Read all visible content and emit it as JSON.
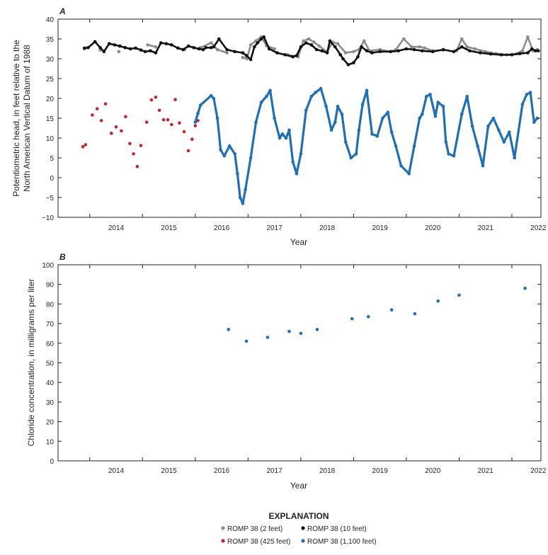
{
  "panel_a": {
    "label": "A",
    "ylabel_line1": "Potentiometric head, in feet relative to the",
    "ylabel_line2": "North American Vertical Datum of 1988",
    "xlabel": "Year"
  },
  "panel_b": {
    "label": "B",
    "ylabel": "Chloride concentration, in milligrams per liter",
    "xlabel": "Year"
  },
  "legend": {
    "title": "EXPLANATION",
    "items": [
      {
        "label": "ROMP 38 (2 feet)",
        "color": "#8c8c8c"
      },
      {
        "label": "ROMP 38 (10 feet)",
        "color": "#111111"
      },
      {
        "label": "ROMP 38 (425 feet)",
        "color": "#c1272d"
      },
      {
        "label": "ROMP 38 (1,100 feet)",
        "color": "#1f6fb5"
      }
    ]
  },
  "chart_data": [
    {
      "type": "scatter",
      "title": "A",
      "xlabel": "Year",
      "ylabel": "Potentiometric head, in feet relative to the North American Vertical Datum of 1988",
      "xlim": [
        2013.4,
        2022.55
      ],
      "ylim": [
        -10,
        40
      ],
      "xticks": [
        2014,
        2015,
        2016,
        2017,
        2018,
        2019,
        2020,
        2021,
        2022
      ],
      "yticks": [
        -10,
        -5,
        0,
        5,
        10,
        15,
        20,
        25,
        30,
        35,
        40
      ],
      "series": [
        {
          "name": "ROMP 38 (2 feet)",
          "color": "#8c8c8c",
          "x": [
            2013.9,
            2014.2,
            2014.55,
            2015.1,
            2015.25,
            2015.8,
            2016.1,
            2016.3,
            2016.42,
            2016.6,
            2016.9,
            2016.98,
            2017.05,
            2017.15,
            2017.25,
            2017.35,
            2017.5,
            2017.75,
            2017.95,
            2018.05,
            2018.15,
            2018.25,
            2018.35,
            2018.5,
            2018.6,
            2018.7,
            2018.85,
            2019.0,
            2019.1,
            2019.2,
            2019.3,
            2019.5,
            2019.7,
            2019.8,
            2019.95,
            2020.1,
            2020.25,
            2020.35,
            2020.5,
            2020.7,
            2020.95,
            2021.05,
            2021.15,
            2021.3,
            2021.5,
            2021.7,
            2021.9,
            2022.1,
            2022.2,
            2022.3,
            2022.4,
            2022.48
          ],
          "y": [
            32.5,
            32.2,
            31.8,
            33.5,
            33.0,
            32.3,
            32.8,
            34.0,
            32.3,
            31.5,
            30.3,
            30.0,
            33.5,
            34.5,
            35.5,
            33.3,
            32.5,
            31.0,
            30.5,
            34.5,
            35.0,
            34.2,
            33.2,
            31.7,
            34.2,
            33.8,
            31.5,
            31.8,
            32.3,
            34.5,
            32.0,
            32.3,
            31.8,
            32.3,
            35.0,
            33.0,
            33.0,
            32.7,
            32.0,
            32.2,
            32.0,
            35.0,
            33.0,
            32.5,
            31.8,
            31.3,
            31.0,
            31.3,
            32.0,
            35.5,
            32.0,
            32.3
          ]
        },
        {
          "name": "ROMP 38 (10 feet)",
          "color": "#111111",
          "x": [
            2013.9,
            2013.97,
            2014.1,
            2014.2,
            2014.27,
            2014.37,
            2014.47,
            2014.57,
            2014.67,
            2014.77,
            2014.87,
            2014.97,
            2015.05,
            2015.15,
            2015.25,
            2015.35,
            2015.45,
            2015.55,
            2015.67,
            2015.77,
            2015.87,
            2015.97,
            2016.07,
            2016.15,
            2016.2,
            2016.3,
            2016.35,
            2016.45,
            2016.6,
            2016.75,
            2016.9,
            2016.97,
            2017.05,
            2017.12,
            2017.18,
            2017.25,
            2017.3,
            2017.4,
            2017.55,
            2017.7,
            2017.85,
            2017.92,
            2018.0,
            2018.1,
            2018.2,
            2018.3,
            2018.4,
            2018.5,
            2018.55,
            2018.65,
            2018.75,
            2018.8,
            2018.9,
            2019.0,
            2019.08,
            2019.15,
            2019.25,
            2019.35,
            2019.5,
            2019.7,
            2019.85,
            2020.0,
            2020.15,
            2020.3,
            2020.5,
            2020.7,
            2020.9,
            2021.05,
            2021.2,
            2021.4,
            2021.6,
            2021.8,
            2022.0,
            2022.15,
            2022.3,
            2022.38,
            2022.45,
            2022.5
          ],
          "y": [
            32.7,
            32.8,
            34.3,
            32.8,
            31.8,
            33.8,
            33.5,
            33.2,
            32.8,
            32.5,
            32.7,
            32.2,
            31.8,
            32.0,
            31.5,
            34.0,
            33.8,
            33.5,
            32.7,
            32.3,
            33.2,
            32.8,
            32.5,
            32.3,
            32.8,
            32.8,
            33.0,
            35.0,
            32.3,
            31.8,
            31.5,
            30.8,
            29.8,
            33.0,
            34.0,
            35.0,
            35.5,
            32.5,
            31.5,
            31.0,
            30.5,
            30.8,
            33.0,
            34.0,
            33.5,
            32.3,
            32.0,
            31.5,
            34.5,
            33.0,
            31.0,
            30.0,
            28.5,
            29.0,
            30.5,
            33.0,
            32.0,
            31.5,
            31.8,
            31.8,
            32.0,
            32.5,
            32.3,
            32.0,
            31.8,
            32.3,
            31.8,
            33.0,
            32.0,
            31.5,
            31.2,
            31.0,
            31.0,
            31.3,
            31.5,
            32.5,
            32.0,
            32.0
          ]
        },
        {
          "name": "ROMP 38 (425 feet)",
          "color": "#c1272d",
          "x": [
            2013.87,
            2013.92,
            2014.05,
            2014.14,
            2014.22,
            2014.3,
            2014.41,
            2014.5,
            2014.6,
            2014.68,
            2014.76,
            2014.83,
            2014.9,
            2014.97,
            2015.08,
            2015.17,
            2015.25,
            2015.32,
            2015.4,
            2015.48,
            2015.55,
            2015.62,
            2015.7,
            2015.79,
            2015.87,
            2015.94,
            2016.0,
            2016.05
          ],
          "y": [
            7.8,
            8.3,
            15.8,
            17.4,
            14.4,
            18.6,
            11.2,
            12.8,
            11.8,
            15.4,
            8.6,
            6.0,
            2.8,
            8.1,
            14.0,
            19.6,
            20.3,
            17.0,
            14.6,
            14.6,
            13.4,
            19.7,
            13.8,
            11.6,
            6.8,
            9.7,
            13.1,
            14.4
          ]
        },
        {
          "name": "ROMP 38 (1,100 feet)",
          "color": "#1f6fb5",
          "x": [
            2016.0,
            2016.05,
            2016.1,
            2016.3,
            2016.35,
            2016.42,
            2016.48,
            2016.55,
            2016.65,
            2016.75,
            2016.8,
            2016.85,
            2016.9,
            2016.95,
            2017.05,
            2017.15,
            2017.25,
            2017.35,
            2017.42,
            2017.5,
            2017.6,
            2017.65,
            2017.72,
            2017.78,
            2017.85,
            2017.92,
            2018.0,
            2018.1,
            2018.2,
            2018.28,
            2018.38,
            2018.48,
            2018.58,
            2018.65,
            2018.7,
            2018.78,
            2018.85,
            2018.95,
            2019.05,
            2019.1,
            2019.17,
            2019.25,
            2019.35,
            2019.45,
            2019.55,
            2019.65,
            2019.72,
            2019.8,
            2019.9,
            2020.05,
            2020.15,
            2020.25,
            2020.3,
            2020.38,
            2020.45,
            2020.55,
            2020.6,
            2020.7,
            2020.75,
            2020.8,
            2020.9,
            2021.05,
            2021.15,
            2021.25,
            2021.35,
            2021.45,
            2021.55,
            2021.65,
            2021.75,
            2021.85,
            2021.95,
            2022.05,
            2022.2,
            2022.28,
            2022.35,
            2022.42,
            2022.48
          ],
          "y": [
            14.0,
            16.2,
            18.3,
            20.7,
            20.0,
            15.0,
            7.0,
            5.5,
            8.0,
            6.0,
            1.0,
            -5.0,
            -6.5,
            -3.0,
            5.0,
            14.0,
            19.0,
            20.5,
            22.0,
            15.0,
            10.0,
            11.0,
            10.0,
            12.0,
            4.0,
            1.0,
            6.0,
            17.0,
            20.5,
            21.5,
            22.5,
            18.0,
            12.0,
            14.0,
            18.0,
            16.0,
            9.0,
            5.0,
            6.0,
            12.0,
            18.5,
            22.0,
            11.0,
            10.5,
            15.0,
            16.5,
            11.5,
            8.0,
            3.0,
            1.0,
            8.0,
            15.0,
            16.0,
            20.5,
            21.0,
            15.5,
            19.0,
            18.0,
            9.0,
            6.0,
            5.5,
            16.0,
            20.5,
            13.0,
            8.0,
            3.0,
            13.0,
            15.0,
            12.0,
            9.0,
            11.5,
            5.0,
            18.5,
            21.0,
            21.5,
            14.0,
            15.0
          ]
        }
      ]
    },
    {
      "type": "scatter",
      "title": "B",
      "xlabel": "Year",
      "ylabel": "Chloride concentration, in milligrams per liter",
      "xlim": [
        2013.4,
        2022.55
      ],
      "ylim": [
        0,
        100
      ],
      "xticks": [
        2014,
        2015,
        2016,
        2017,
        2018,
        2019,
        2020,
        2021,
        2022
      ],
      "yticks": [
        0,
        10,
        20,
        30,
        40,
        50,
        60,
        70,
        80,
        90,
        100
      ],
      "series": [
        {
          "name": "ROMP 38 (1,100 feet)",
          "color": "#1f6fb5",
          "x": [
            2016.63,
            2016.97,
            2017.37,
            2017.78,
            2018.0,
            2018.31,
            2018.97,
            2019.28,
            2019.72,
            2020.16,
            2020.6,
            2021.0,
            2022.25
          ],
          "y": [
            67,
            61,
            63,
            66,
            65,
            67,
            72.5,
            73.5,
            77,
            75,
            81.5,
            84.5,
            88
          ]
        }
      ]
    }
  ]
}
